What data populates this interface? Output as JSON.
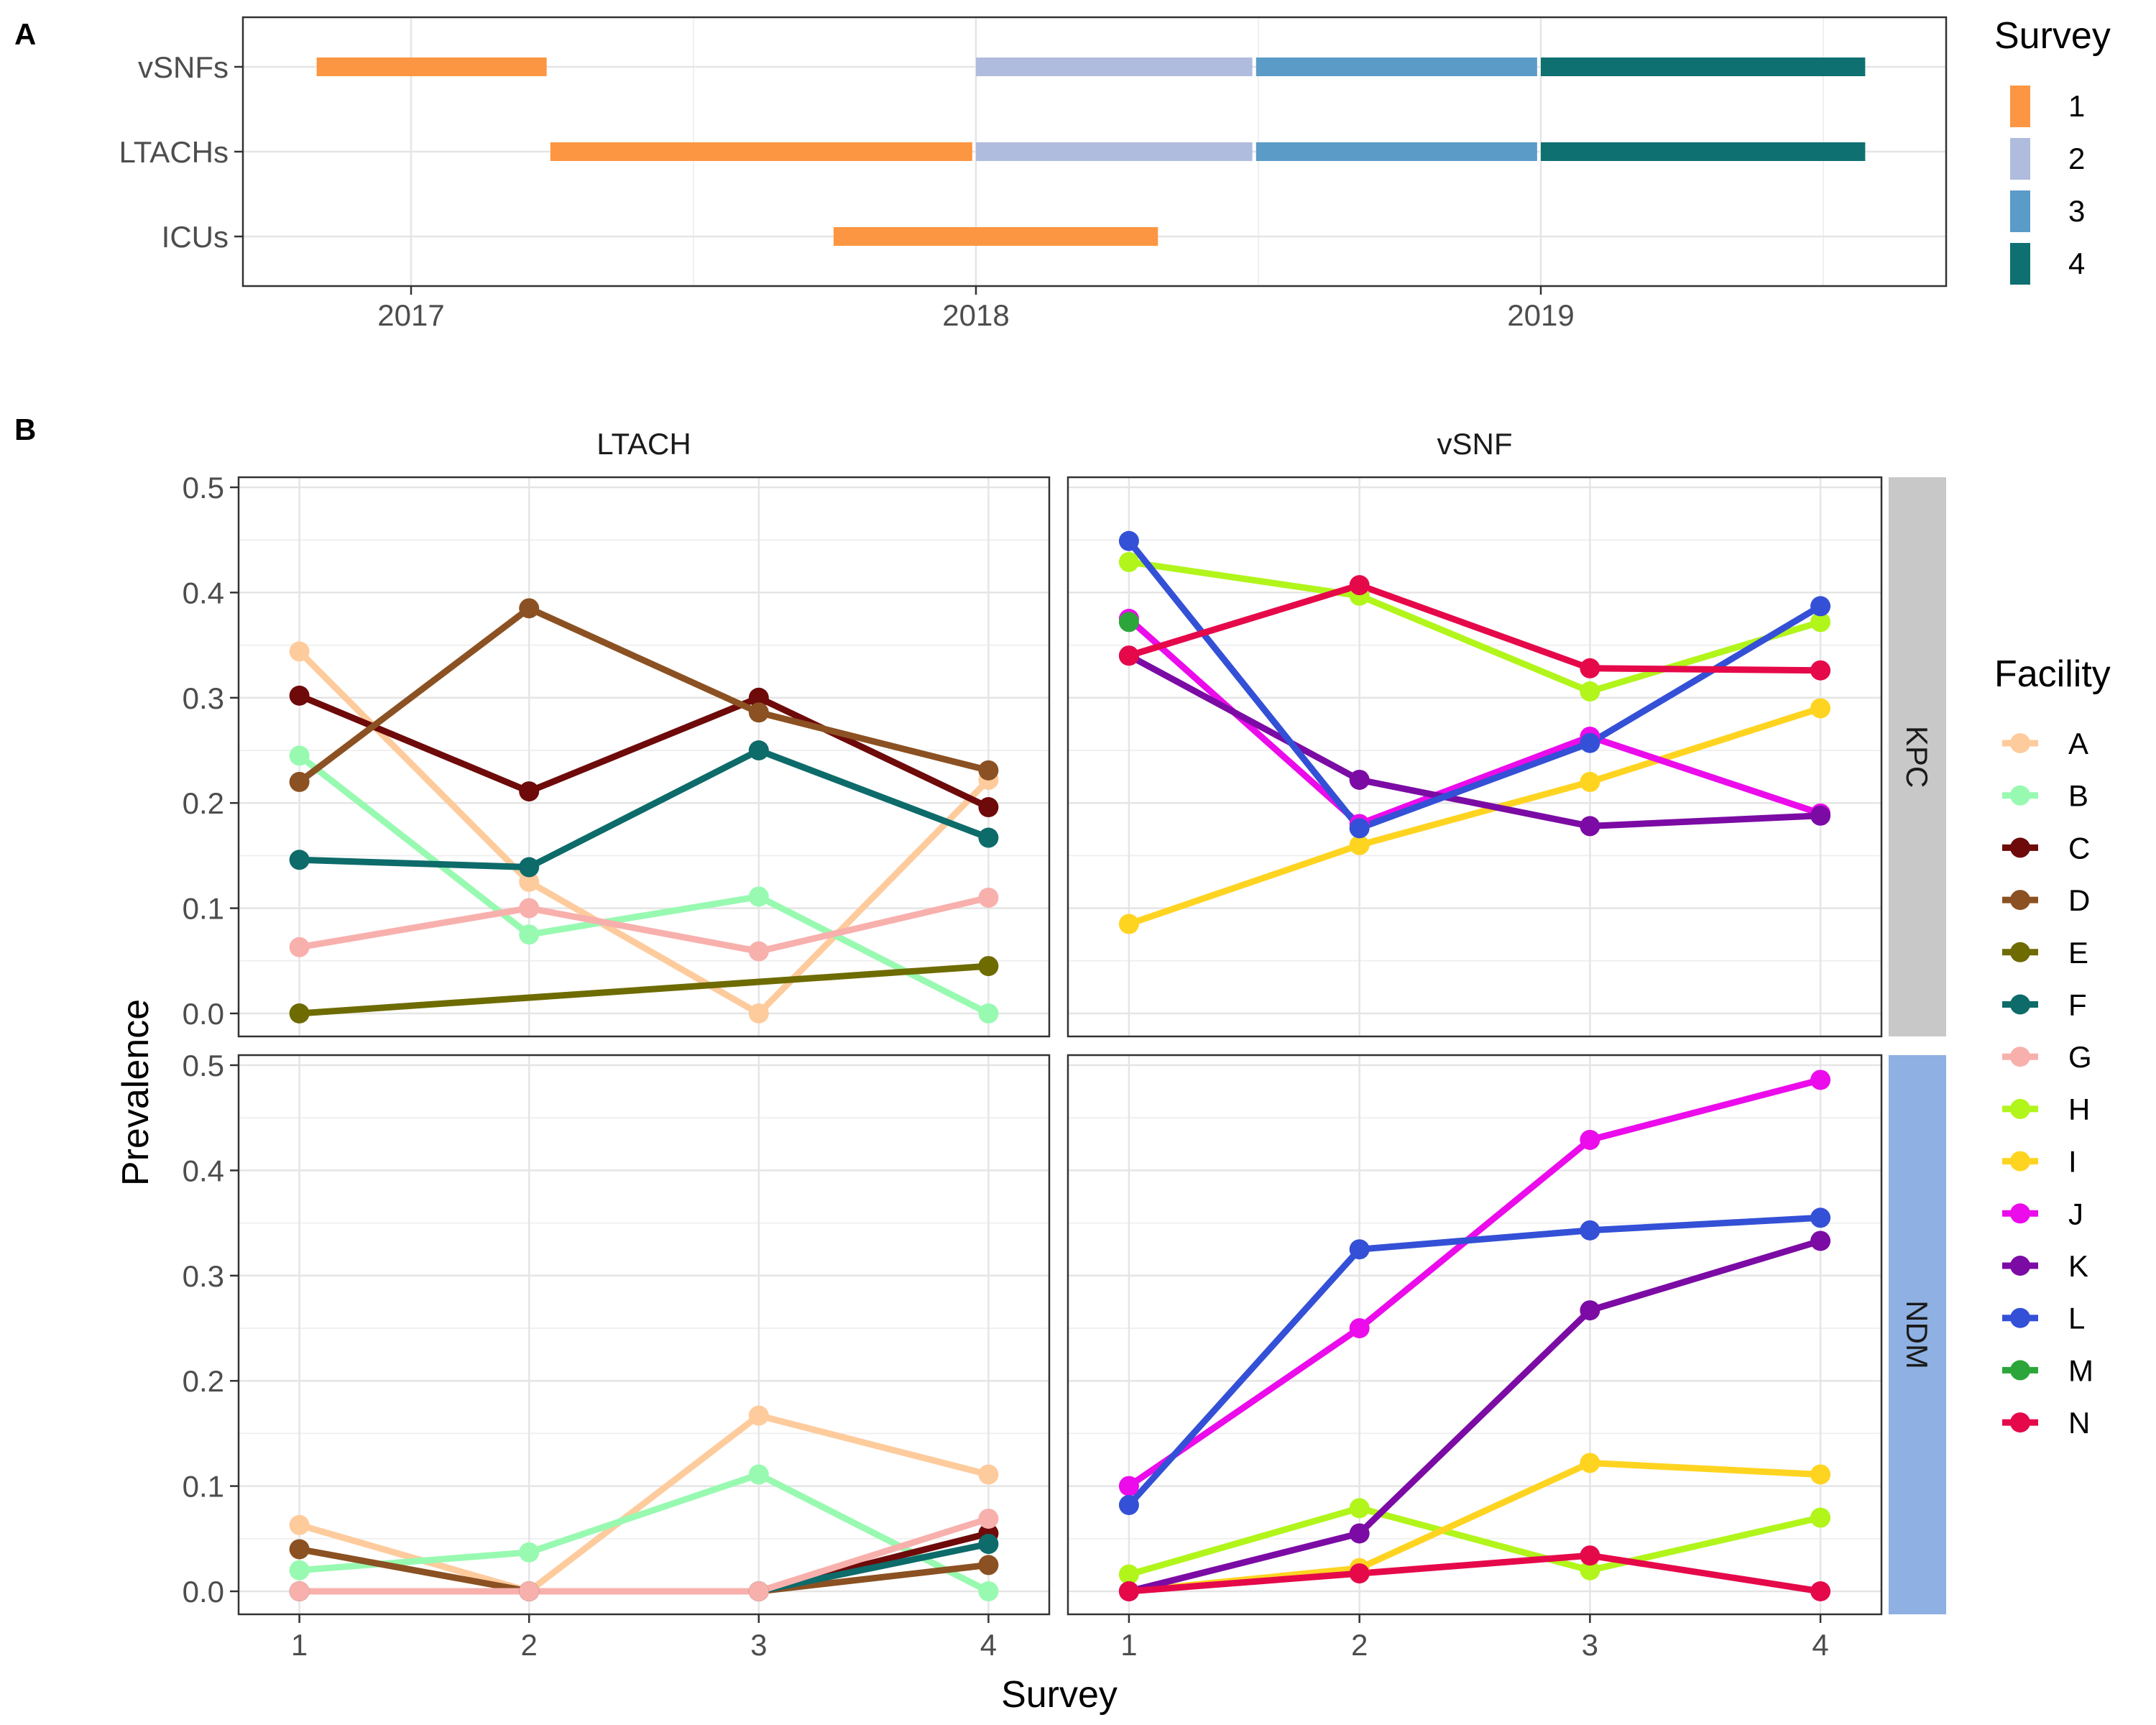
{
  "panel_labels": {
    "a": "A",
    "b": "B"
  },
  "chart_data": [
    {
      "type": "timeline",
      "panel": "A",
      "categories": [
        "vSNFs",
        "LTACHs",
        "ICUs"
      ],
      "x_ticks": [
        "2017",
        "2018",
        "2019"
      ],
      "legend": {
        "title": "Survey",
        "placement": "right",
        "entries": [
          {
            "label": "1",
            "color": "#FC9642"
          },
          {
            "label": "2",
            "color": "#B0BCDD"
          },
          {
            "label": "3",
            "color": "#5A9BC8"
          },
          {
            "label": "4",
            "color": "#0F7072"
          }
        ]
      },
      "segments": [
        {
          "category": "vSNFs",
          "survey": "1",
          "start": "2016-11-01",
          "end": "2017-03-31"
        },
        {
          "category": "vSNFs",
          "survey": "2",
          "start": "2018-01-01",
          "end": "2018-06-30"
        },
        {
          "category": "vSNFs",
          "survey": "3",
          "start": "2018-07-01",
          "end": "2018-12-31"
        },
        {
          "category": "vSNFs",
          "survey": "4",
          "start": "2019-01-01",
          "end": "2019-07-31"
        },
        {
          "category": "LTACHs",
          "survey": "1",
          "start": "2017-04-01",
          "end": "2017-12-31"
        },
        {
          "category": "LTACHs",
          "survey": "2",
          "start": "2018-01-01",
          "end": "2018-06-30"
        },
        {
          "category": "LTACHs",
          "survey": "3",
          "start": "2018-07-01",
          "end": "2018-12-31"
        },
        {
          "category": "LTACHs",
          "survey": "4",
          "start": "2019-01-01",
          "end": "2019-07-31"
        },
        {
          "category": "ICUs",
          "survey": "1",
          "start": "2017-10-01",
          "end": "2018-04-30"
        }
      ]
    },
    {
      "type": "line",
      "panel": "B",
      "xlabel": "Survey",
      "ylabel": "Prevalence",
      "x_ticks": [
        1,
        2,
        3,
        4
      ],
      "y_ticks": [
        "0.0",
        "0.1",
        "0.2",
        "0.3",
        "0.4",
        "0.5"
      ],
      "ylim": [
        0,
        0.5
      ],
      "col_facets": [
        "LTACH",
        "vSNF"
      ],
      "row_facets": [
        {
          "label": "KPC",
          "color": "#C8C8C8"
        },
        {
          "label": "NDM",
          "color": "#8EB0E2"
        }
      ],
      "legend": {
        "title": "Facility",
        "placement": "right",
        "entries": [
          {
            "label": "A",
            "color": "#FECB9D"
          },
          {
            "label": "B",
            "color": "#98FAB1"
          },
          {
            "label": "C",
            "color": "#6E0A0A"
          },
          {
            "label": "D",
            "color": "#8B5122"
          },
          {
            "label": "E",
            "color": "#6E6B00"
          },
          {
            "label": "F",
            "color": "#0D6B6A"
          },
          {
            "label": "G",
            "color": "#F8B0AD"
          },
          {
            "label": "H",
            "color": "#B1F51B"
          },
          {
            "label": "I",
            "color": "#FFD421"
          },
          {
            "label": "J",
            "color": "#EB0BEB"
          },
          {
            "label": "K",
            "color": "#7B0BA4"
          },
          {
            "label": "L",
            "color": "#3450D6"
          },
          {
            "label": "M",
            "color": "#2CA63A"
          },
          {
            "label": "N",
            "color": "#E5094A"
          }
        ]
      },
      "facets": [
        {
          "row": "KPC",
          "col": "LTACH",
          "series": [
            {
              "name": "A",
              "points": [
                [
                  1,
                  0.344
                ],
                [
                  2,
                  0.125
                ],
                [
                  3,
                  0.0
                ],
                [
                  4,
                  0.222
                ]
              ]
            },
            {
              "name": "B",
              "points": [
                [
                  1,
                  0.245
                ],
                [
                  2,
                  0.075
                ],
                [
                  3,
                  0.111
                ],
                [
                  4,
                  0.0
                ]
              ]
            },
            {
              "name": "C",
              "points": [
                [
                  1,
                  0.302
                ],
                [
                  2,
                  0.211
                ],
                [
                  3,
                  0.3
                ],
                [
                  4,
                  0.196
                ]
              ]
            },
            {
              "name": "D",
              "points": [
                [
                  1,
                  0.22
                ],
                [
                  2,
                  0.385
                ],
                [
                  3,
                  0.286
                ],
                [
                  4,
                  0.231
                ]
              ]
            },
            {
              "name": "E",
              "points": [
                [
                  1,
                  0.0
                ],
                [
                  4,
                  0.045
                ]
              ]
            },
            {
              "name": "F",
              "points": [
                [
                  1,
                  0.146
                ],
                [
                  2,
                  0.139
                ],
                [
                  3,
                  0.25
                ],
                [
                  4,
                  0.167
                ]
              ]
            },
            {
              "name": "G",
              "points": [
                [
                  1,
                  0.063
                ],
                [
                  2,
                  0.1
                ],
                [
                  3,
                  0.059
                ],
                [
                  4,
                  0.11
                ]
              ]
            }
          ]
        },
        {
          "row": "KPC",
          "col": "vSNF",
          "series": [
            {
              "name": "H",
              "points": [
                [
                  1,
                  0.429
                ],
                [
                  2,
                  0.397
                ],
                [
                  3,
                  0.306
                ],
                [
                  4,
                  0.372
                ]
              ]
            },
            {
              "name": "I",
              "points": [
                [
                  1,
                  0.085
                ],
                [
                  2,
                  0.16
                ],
                [
                  3,
                  0.22
                ],
                [
                  4,
                  0.29
                ]
              ]
            },
            {
              "name": "J",
              "points": [
                [
                  1,
                  0.375
                ],
                [
                  2,
                  0.18
                ],
                [
                  3,
                  0.263
                ],
                [
                  4,
                  0.19
                ]
              ]
            },
            {
              "name": "K",
              "points": [
                [
                  1,
                  0.34
                ],
                [
                  2,
                  0.222
                ],
                [
                  3,
                  0.178
                ],
                [
                  4,
                  0.188
                ]
              ]
            },
            {
              "name": "L",
              "points": [
                [
                  1,
                  0.449
                ],
                [
                  2,
                  0.176
                ],
                [
                  3,
                  0.257
                ],
                [
                  4,
                  0.387
                ]
              ]
            },
            {
              "name": "M",
              "points": [
                [
                  1,
                  0.372
                ]
              ]
            },
            {
              "name": "N",
              "points": [
                [
                  1,
                  0.34
                ],
                [
                  2,
                  0.407
                ],
                [
                  3,
                  0.328
                ],
                [
                  4,
                  0.326
                ]
              ]
            }
          ]
        },
        {
          "row": "NDM",
          "col": "LTACH",
          "series": [
            {
              "name": "A",
              "points": [
                [
                  1,
                  0.063
                ],
                [
                  2,
                  0.0
                ],
                [
                  3,
                  0.167
                ],
                [
                  4,
                  0.111
                ]
              ]
            },
            {
              "name": "B",
              "points": [
                [
                  1,
                  0.02
                ],
                [
                  2,
                  0.037
                ],
                [
                  3,
                  0.111
                ],
                [
                  4,
                  0.0
                ]
              ]
            },
            {
              "name": "C",
              "points": [
                [
                  1,
                  0.0
                ],
                [
                  2,
                  0.0
                ],
                [
                  3,
                  0.0
                ],
                [
                  4,
                  0.055
                ]
              ]
            },
            {
              "name": "D",
              "points": [
                [
                  1,
                  0.04
                ],
                [
                  2,
                  0.0
                ],
                [
                  3,
                  0.0
                ],
                [
                  4,
                  0.025
                ]
              ]
            },
            {
              "name": "F",
              "points": [
                [
                  1,
                  0.0
                ],
                [
                  2,
                  0.0
                ],
                [
                  3,
                  0.0
                ],
                [
                  4,
                  0.045
                ]
              ]
            },
            {
              "name": "G",
              "points": [
                [
                  1,
                  0.0
                ],
                [
                  2,
                  0.0
                ],
                [
                  3,
                  0.0
                ],
                [
                  4,
                  0.069
                ]
              ]
            }
          ]
        },
        {
          "row": "NDM",
          "col": "vSNF",
          "series": [
            {
              "name": "H",
              "points": [
                [
                  1,
                  0.016
                ],
                [
                  2,
                  0.079
                ],
                [
                  3,
                  0.02
                ],
                [
                  4,
                  0.07
                ]
              ]
            },
            {
              "name": "I",
              "points": [
                [
                  1,
                  0.0
                ],
                [
                  2,
                  0.022
                ],
                [
                  3,
                  0.122
                ],
                [
                  4,
                  0.111
                ]
              ]
            },
            {
              "name": "J",
              "points": [
                [
                  1,
                  0.1
                ],
                [
                  2,
                  0.25
                ],
                [
                  3,
                  0.429
                ],
                [
                  4,
                  0.486
                ]
              ]
            },
            {
              "name": "K",
              "points": [
                [
                  1,
                  0.0
                ],
                [
                  2,
                  0.055
                ],
                [
                  3,
                  0.267
                ],
                [
                  4,
                  0.333
                ]
              ]
            },
            {
              "name": "L",
              "points": [
                [
                  1,
                  0.082
                ],
                [
                  2,
                  0.325
                ],
                [
                  3,
                  0.343
                ],
                [
                  4,
                  0.355
                ]
              ]
            },
            {
              "name": "N",
              "points": [
                [
                  1,
                  0.0
                ],
                [
                  2,
                  0.017
                ],
                [
                  3,
                  0.034
                ],
                [
                  4,
                  0.0
                ]
              ]
            }
          ]
        }
      ]
    }
  ]
}
